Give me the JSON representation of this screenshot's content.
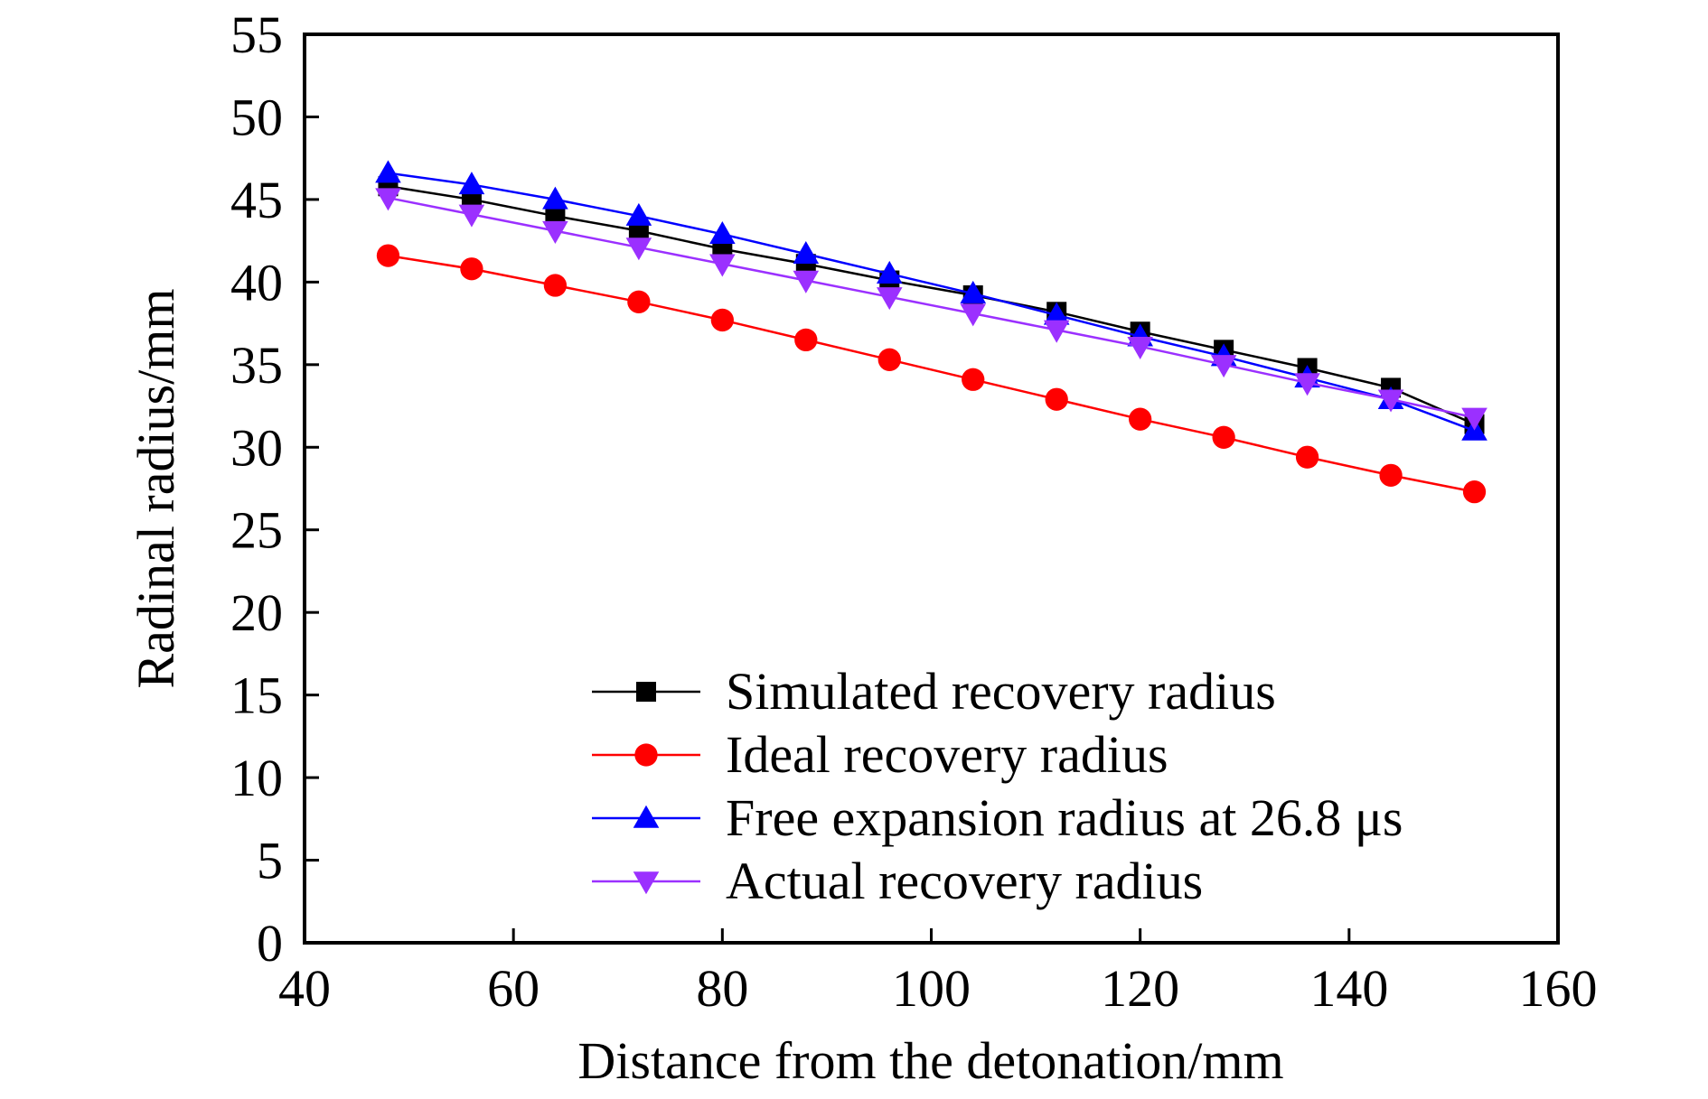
{
  "chart_data": {
    "type": "line",
    "xlabel": "Distance from the detonation/mm",
    "ylabel": "Radinal radius/mm",
    "xlim": [
      40,
      160
    ],
    "ylim": [
      0,
      55
    ],
    "xticks": [
      40,
      60,
      80,
      100,
      120,
      140,
      160
    ],
    "yticks": [
      0,
      5,
      10,
      15,
      20,
      25,
      30,
      35,
      40,
      45,
      50,
      55
    ],
    "grid": false,
    "legend_position": "bottom-right",
    "x": [
      48,
      56,
      64,
      72,
      80,
      88,
      96,
      104,
      112,
      120,
      128,
      136,
      144,
      152
    ],
    "series": [
      {
        "name": "Simulated recovery radius",
        "color": "#000000",
        "marker": "square",
        "values": [
          45.8,
          45.0,
          44.0,
          43.1,
          42.0,
          41.1,
          40.1,
          39.2,
          38.2,
          37.0,
          35.9,
          34.8,
          33.6,
          31.4
        ]
      },
      {
        "name": "Ideal recovery radius",
        "color": "#ff0000",
        "marker": "circle",
        "values": [
          41.6,
          40.8,
          39.8,
          38.8,
          37.7,
          36.5,
          35.3,
          34.1,
          32.9,
          31.7,
          30.6,
          29.4,
          28.3,
          27.3
        ]
      },
      {
        "name": "Free expansion radius at 26.8 μs",
        "color": "#0000ff",
        "marker": "triangle-up",
        "values": [
          46.6,
          45.9,
          45.0,
          44.0,
          42.9,
          41.7,
          40.5,
          39.3,
          38.0,
          36.7,
          35.5,
          34.2,
          32.9,
          31.0
        ]
      },
      {
        "name": "Actual recovery radius",
        "color": "#9b30ff",
        "marker": "triangle-down",
        "values": [
          45.1,
          44.1,
          43.1,
          42.1,
          41.1,
          40.1,
          39.1,
          38.1,
          37.1,
          36.1,
          35.0,
          33.9,
          32.9,
          31.8
        ]
      }
    ]
  }
}
